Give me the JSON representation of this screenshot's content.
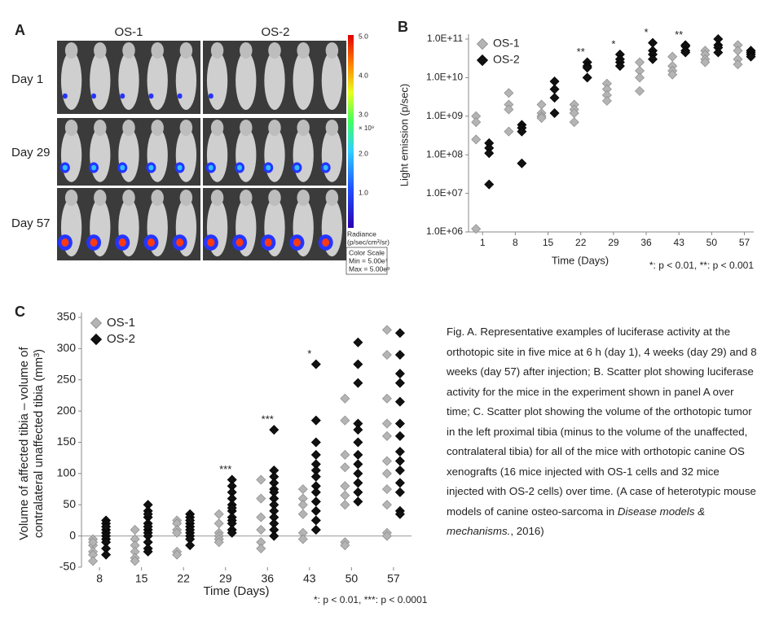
{
  "panel_a": {
    "label": "A",
    "columns": [
      "OS-1",
      "OS-2"
    ],
    "rows": [
      "Day 1",
      "Day 29",
      "Day 57"
    ],
    "colorbar": {
      "ticks": [
        "5.0",
        "4.0",
        "3.0",
        "2.0",
        "1.0"
      ],
      "multiplier": "× 10⁹",
      "title": [
        "Radiance",
        "(p/sec/cm²/sr)"
      ],
      "scale_box": [
        "Color Scale",
        "Min = 5.00e⁷",
        "Max = 5.00e⁹"
      ]
    }
  },
  "chart_data": [
    {
      "type": "scatter",
      "panel_label": "B",
      "ylabel": [
        "Light emission (p/sec)"
      ],
      "xlabel": "Time (Days)",
      "log_y": true,
      "xlim": [
        -2,
        59
      ],
      "xticks": [
        1,
        8,
        15,
        22,
        29,
        36,
        43,
        50,
        57
      ],
      "ylim": [
        1000000.0,
        100000000000.0
      ],
      "yticks": [
        {
          "value": 1000000.0,
          "label": "1.0E+06"
        },
        {
          "value": 10000000.0,
          "label": "1.0E+07"
        },
        {
          "value": 100000000.0,
          "label": "1.0E+08"
        },
        {
          "value": 1000000000.0,
          "label": "1.0E+09"
        },
        {
          "value": 10000000000.0,
          "label": "1.0E+10"
        },
        {
          "value": 100000000000.0,
          "label": "1.0E+11"
        }
      ],
      "series": [
        {
          "name": "OS-1",
          "color": "#b4b4b4",
          "x": [
            1,
            1,
            1,
            1,
            8,
            8,
            8,
            8,
            15,
            15,
            15,
            15,
            22,
            22,
            22,
            22,
            29,
            29,
            29,
            29,
            36,
            36,
            36,
            36,
            43,
            43,
            43,
            43,
            50,
            50,
            50,
            50,
            57,
            57,
            57,
            57
          ],
          "values": [
            1000000000.0,
            700000000.0,
            250000000.0,
            1200000.0,
            4000000000.0,
            2000000000.0,
            1500000000.0,
            400000000.0,
            2000000000.0,
            1200000000.0,
            1000000000.0,
            900000000.0,
            2000000000.0,
            1500000000.0,
            1200000000.0,
            700000000.0,
            7000000000.0,
            5000000000.0,
            3500000000.0,
            2500000000.0,
            25000000000.0,
            15000000000.0,
            10000000000.0,
            4500000000.0,
            35000000000.0,
            20000000000.0,
            15000000000.0,
            12000000000.0,
            50000000000.0,
            40000000000.0,
            30000000000.0,
            25000000000.0,
            70000000000.0,
            50000000000.0,
            30000000000.0,
            22000000000.0
          ]
        },
        {
          "name": "OS-2",
          "color": "#111111",
          "x": [
            1,
            1,
            1,
            1,
            8,
            8,
            8,
            8,
            15,
            15,
            15,
            15,
            22,
            22,
            22,
            22,
            29,
            29,
            29,
            29,
            36,
            36,
            36,
            36,
            43,
            43,
            43,
            43,
            50,
            50,
            50,
            50,
            57,
            57,
            57,
            57
          ],
          "values": [
            200000000.0,
            150000000.0,
            110000000.0,
            17000000.0,
            600000000.0,
            500000000.0,
            400000000.0,
            60000000.0,
            8000000000.0,
            5000000000.0,
            3000000000.0,
            1200000000.0,
            25000000000.0,
            20000000000.0,
            18000000000.0,
            10000000000.0,
            40000000000.0,
            30000000000.0,
            25000000000.0,
            20000000000.0,
            80000000000.0,
            50000000000.0,
            40000000000.0,
            30000000000.0,
            70000000000.0,
            65000000000.0,
            50000000000.0,
            45000000000.0,
            100000000000.0,
            70000000000.0,
            60000000000.0,
            45000000000.0,
            50000000000.0,
            45000000000.0,
            40000000000.0,
            35000000000.0
          ]
        }
      ],
      "annotations": [
        {
          "x": 22,
          "text": "**"
        },
        {
          "x": 29,
          "text": "*"
        },
        {
          "x": 36,
          "text": "*"
        },
        {
          "x": 43,
          "text": "**"
        }
      ],
      "footnote": "*: p < 0.01, **: p < 0.001"
    },
    {
      "type": "scatter",
      "panel_label": "C",
      "ylabel": [
        "Volume of affected tibia – volume of",
        "contralateral unaffected tibia (mm³)"
      ],
      "xlabel": "Time (Days)",
      "log_y": false,
      "xlim": [
        5,
        60
      ],
      "xticks": [
        8,
        15,
        22,
        29,
        36,
        43,
        50,
        57
      ],
      "ylim": [
        -50,
        350
      ],
      "yticks": [
        -50,
        0,
        50,
        100,
        150,
        200,
        250,
        300,
        350
      ],
      "series": [
        {
          "name": "OS-1",
          "color": "#b4b4b4",
          "x": [
            8,
            8,
            8,
            8,
            8,
            8,
            15,
            15,
            15,
            15,
            15,
            15,
            22,
            22,
            22,
            22,
            22,
            22,
            29,
            29,
            29,
            29,
            29,
            29,
            36,
            36,
            36,
            36,
            36,
            36,
            43,
            43,
            43,
            43,
            43,
            43,
            50,
            50,
            50,
            50,
            50,
            50,
            50,
            50,
            50,
            57,
            57,
            57,
            57,
            57,
            57,
            57,
            57,
            57,
            57,
            57
          ],
          "values": [
            -5,
            -15,
            -25,
            -30,
            -40,
            -10,
            10,
            -5,
            -15,
            -25,
            -35,
            -40,
            25,
            20,
            10,
            5,
            -25,
            -30,
            35,
            20,
            5,
            0,
            -5,
            -10,
            90,
            60,
            30,
            10,
            -10,
            -20,
            75,
            60,
            50,
            35,
            5,
            -5,
            220,
            185,
            130,
            110,
            80,
            65,
            50,
            -10,
            -15,
            330,
            290,
            220,
            180,
            160,
            120,
            100,
            75,
            50,
            5,
            0
          ]
        },
        {
          "name": "OS-2",
          "color": "#111111",
          "x": [
            8,
            8,
            8,
            8,
            8,
            8,
            8,
            8,
            8,
            8,
            15,
            15,
            15,
            15,
            15,
            15,
            15,
            15,
            15,
            15,
            15,
            15,
            22,
            22,
            22,
            22,
            22,
            22,
            22,
            22,
            22,
            22,
            29,
            29,
            29,
            29,
            29,
            29,
            29,
            29,
            29,
            29,
            29,
            29,
            36,
            36,
            36,
            36,
            36,
            36,
            36,
            36,
            36,
            36,
            36,
            36,
            36,
            43,
            43,
            43,
            43,
            43,
            43,
            43,
            43,
            43,
            43,
            43,
            43,
            43,
            50,
            50,
            50,
            50,
            50,
            50,
            50,
            50,
            50,
            50,
            50,
            50,
            57,
            57,
            57,
            57,
            57,
            57,
            57,
            57,
            57,
            57,
            57,
            57,
            57,
            57
          ],
          "values": [
            25,
            20,
            10,
            5,
            0,
            -5,
            -10,
            -20,
            -30,
            15,
            50,
            40,
            30,
            20,
            10,
            5,
            0,
            -10,
            -20,
            -25,
            35,
            15,
            35,
            30,
            20,
            15,
            10,
            5,
            0,
            -5,
            -15,
            25,
            90,
            80,
            70,
            60,
            50,
            40,
            30,
            25,
            20,
            10,
            45,
            5,
            170,
            105,
            95,
            85,
            75,
            70,
            60,
            50,
            40,
            30,
            20,
            10,
            0,
            275,
            185,
            150,
            130,
            115,
            105,
            95,
            80,
            70,
            55,
            40,
            25,
            10,
            310,
            275,
            245,
            180,
            170,
            150,
            130,
            115,
            100,
            85,
            70,
            55,
            325,
            290,
            260,
            245,
            215,
            180,
            160,
            135,
            120,
            105,
            85,
            70,
            40,
            35
          ]
        }
      ],
      "annotations": [
        {
          "x": 29,
          "text": "***"
        },
        {
          "x": 36,
          "text": "***"
        },
        {
          "x": 43,
          "text": "*"
        }
      ],
      "footnote": "*: p < 0.01, ***: p < 0.0001"
    }
  ],
  "caption": {
    "text_before": "Fig. A. Representative examples of luciferase activity at the orthotopic site in five mice at 6 h (day 1), 4 weeks (day 29) and 8 weeks (day 57) after injection; B. Scatter plot showing luciferase activity for the mice in the experiment shown in panel A over time; C. Scatter plot showing the volume of the orthotopic tumor in the left proximal tibia (minus to the volume of the unaffected, contralateral tibia) for all of the mice with orthotopic canine OS xenografts (16 mice injected with OS-1 cells and 32 mice injected with OS-2 cells) over time. (A case of heterotypic mouse models of canine osteo-sarcoma in ",
    "journal": "Disease models & mechanisms.",
    "text_after": ", 2016)"
  }
}
